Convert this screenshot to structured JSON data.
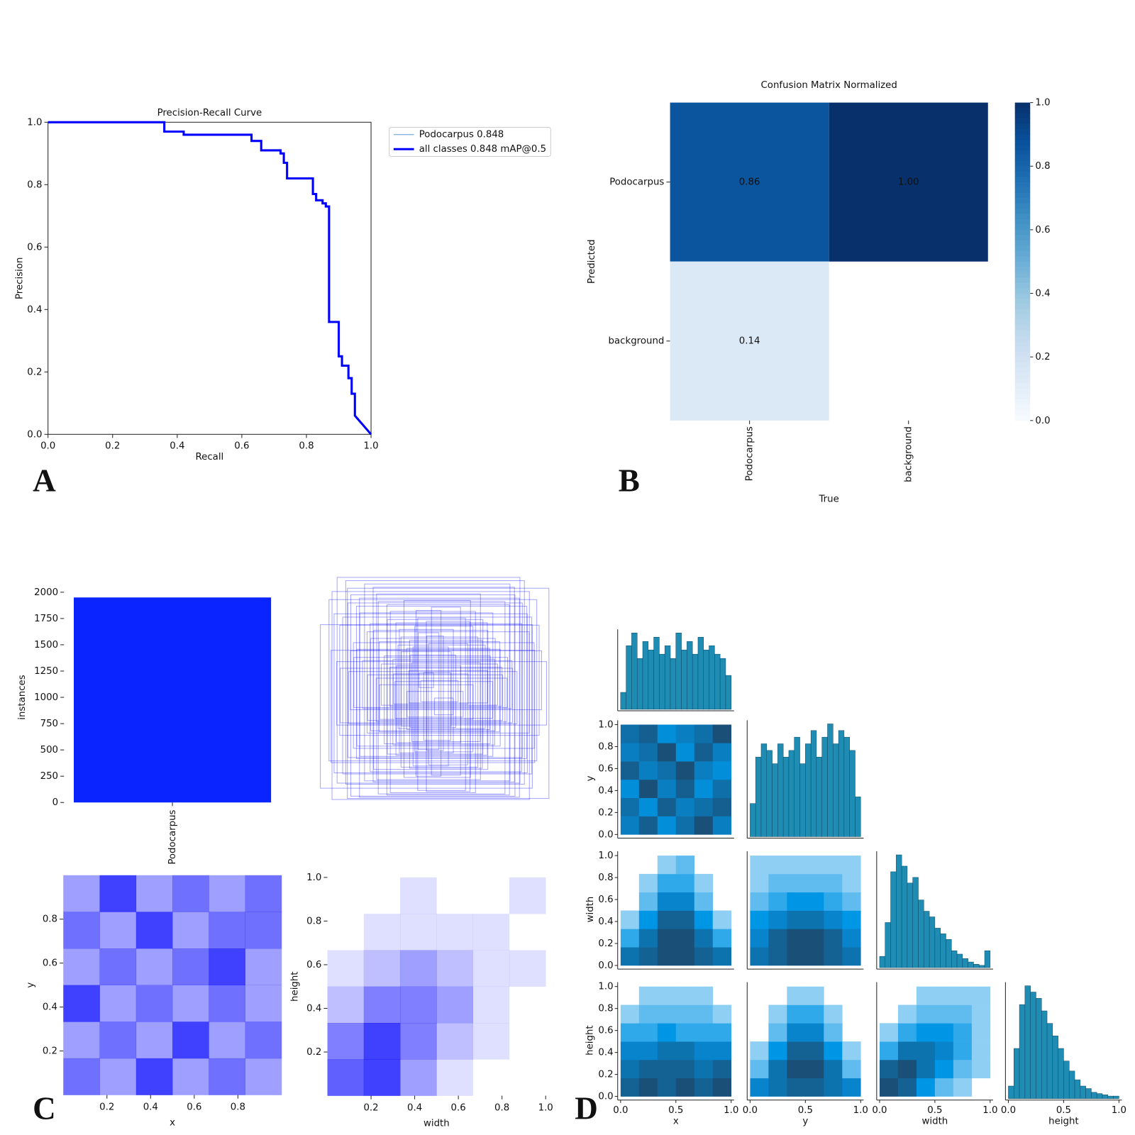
{
  "chart_data": [
    {
      "type": "line",
      "panel": "A",
      "title": "Precision-Recall Curve",
      "xlabel": "Recall",
      "ylabel": "Precision",
      "xlim": [
        0,
        1
      ],
      "ylim": [
        0,
        1
      ],
      "xticks": [
        {
          "value": 0,
          "label": "0.0"
        },
        0.2,
        0.4,
        0.6,
        0.8,
        {
          "value": 1,
          "label": "1.0"
        }
      ],
      "yticks": [
        {
          "value": 0,
          "label": "0.0"
        },
        0.2,
        0.4,
        0.6,
        0.8,
        {
          "value": 1,
          "label": "1.0"
        }
      ],
      "x": [
        0,
        0.36,
        0.36,
        0.42,
        0.42,
        0.63,
        0.63,
        0.66,
        0.66,
        0.72,
        0.72,
        0.73,
        0.73,
        0.74,
        0.74,
        0.82,
        0.82,
        0.83,
        0.83,
        0.85,
        0.85,
        0.86,
        0.86,
        0.87,
        0.87,
        0.9,
        0.9,
        0.91,
        0.91,
        0.93,
        0.93,
        0.94,
        0.94,
        0.95,
        0.95,
        1.0
      ],
      "series": [
        {
          "name": "Podocarpus 0.848",
          "color": "#5a9bd5",
          "values": [
            1,
            1,
            0.97,
            0.97,
            0.96,
            0.96,
            0.94,
            0.94,
            0.91,
            0.91,
            0.9,
            0.9,
            0.87,
            0.87,
            0.82,
            0.82,
            0.77,
            0.77,
            0.75,
            0.75,
            0.74,
            0.74,
            0.73,
            0.73,
            0.36,
            0.36,
            0.25,
            0.25,
            0.22,
            0.22,
            0.18,
            0.18,
            0.13,
            0.13,
            0.06,
            0
          ]
        },
        {
          "name": "all classes 0.848 mAP@0.5",
          "color": "#0000ff",
          "values": [
            1,
            1,
            0.97,
            0.97,
            0.96,
            0.96,
            0.94,
            0.94,
            0.91,
            0.91,
            0.9,
            0.9,
            0.87,
            0.87,
            0.82,
            0.82,
            0.77,
            0.77,
            0.75,
            0.75,
            0.74,
            0.74,
            0.73,
            0.73,
            0.36,
            0.36,
            0.25,
            0.25,
            0.22,
            0.22,
            0.18,
            0.18,
            0.13,
            0.13,
            0.06,
            0
          ]
        }
      ],
      "legend": "upper-right-outside"
    },
    {
      "type": "heatmap",
      "panel": "B",
      "title": "Confusion Matrix Normalized",
      "xlabel": "True",
      "ylabel": "Predicted",
      "x_categories": [
        "Podocarpus",
        "background"
      ],
      "y_categories": [
        "Podocarpus",
        "background"
      ],
      "values": [
        [
          0.86,
          1.0
        ],
        [
          0.14,
          null
        ]
      ],
      "value_labels": [
        [
          "0.86",
          "1.00"
        ],
        [
          "0.14",
          null
        ]
      ],
      "clim": [
        0,
        1
      ],
      "cticks": [
        {
          "value": 0,
          "label": "0.0"
        },
        0.2,
        0.4,
        0.6,
        0.8,
        {
          "value": 1,
          "label": "1.0"
        }
      ],
      "colormap": "Blues"
    },
    {
      "type": "bar",
      "panel": "C",
      "ylabel": "instances",
      "categories": [
        "Podocarpus"
      ],
      "values": [
        1950
      ],
      "color": "#0a24ff",
      "ylim": [
        0,
        2000
      ],
      "yticks": [
        0,
        250,
        500,
        750,
        1000,
        1250,
        1500,
        1750,
        2000
      ]
    },
    {
      "type": "hist2d",
      "xlabel": "x",
      "ylabel": "y",
      "xlim": [
        0,
        1
      ],
      "ylim": [
        0,
        1
      ],
      "color": "#0000ff",
      "xticks": [
        0.2,
        0.4,
        0.6,
        0.8
      ],
      "yticks": [
        0.2,
        0.4,
        0.6,
        0.8
      ],
      "values": [
        [
          3,
          2,
          4,
          2,
          3,
          2
        ],
        [
          2,
          3,
          2,
          4,
          2,
          3
        ],
        [
          4,
          2,
          3,
          2,
          3,
          2
        ],
        [
          2,
          3,
          2,
          3,
          4,
          2
        ],
        [
          3,
          2,
          4,
          2,
          3,
          3
        ],
        [
          2,
          4,
          2,
          3,
          2,
          3
        ]
      ]
    },
    {
      "type": "hist2d",
      "xlabel": "width",
      "ylabel": "height",
      "xlim": [
        0,
        1
      ],
      "ylim": [
        0,
        1
      ],
      "color": "#0000ff",
      "xticks": [
        0.2,
        0.4,
        0.6,
        0.8,
        {
          "value": 1,
          "label": "1.0"
        }
      ],
      "yticks": [
        0.2,
        0.4,
        0.6,
        0.8,
        {
          "value": 1,
          "label": "1.0"
        }
      ],
      "values": [
        [
          5,
          6,
          3,
          1,
          0,
          0
        ],
        [
          4,
          6,
          4,
          2,
          1,
          0
        ],
        [
          2,
          4,
          4,
          3,
          1,
          0
        ],
        [
          1,
          2,
          3,
          2,
          1,
          1
        ],
        [
          0,
          1,
          1,
          1,
          1,
          0
        ],
        [
          0,
          0,
          1,
          0,
          0,
          1
        ]
      ]
    },
    {
      "type": "pairplot",
      "panel": "D",
      "variables": [
        "x",
        "y",
        "width",
        "height"
      ],
      "lim": [
        0,
        1
      ],
      "yticks": [
        {
          "value": 0,
          "label": "0.0"
        },
        0.2,
        0.4,
        0.6,
        0.8,
        {
          "value": 1,
          "label": "1.0"
        }
      ],
      "xticks": [
        {
          "value": 0,
          "label": "0.0"
        },
        0.5,
        {
          "value": 1,
          "label": "1.0"
        }
      ],
      "hist_color": "#1f8cb4",
      "histograms": [
        [
          20,
          75,
          90,
          60,
          80,
          70,
          85,
          65,
          75,
          60,
          90,
          70,
          80,
          65,
          85,
          70,
          75,
          65,
          60,
          40
        ],
        [
          25,
          60,
          70,
          65,
          55,
          70,
          60,
          65,
          75,
          55,
          70,
          80,
          60,
          75,
          85,
          70,
          80,
          75,
          65,
          30
        ],
        [
          10,
          40,
          85,
          100,
          90,
          75,
          80,
          60,
          50,
          45,
          35,
          30,
          25,
          15,
          12,
          8,
          5,
          3,
          2,
          15
        ],
        [
          10,
          40,
          75,
          90,
          85,
          80,
          70,
          60,
          50,
          40,
          30,
          22,
          15,
          10,
          8,
          5,
          4,
          3,
          2,
          2
        ]
      ],
      "grids": [
        [
          [
            [
              6,
              8,
              5,
              7,
              9,
              6
            ],
            [
              7,
              5,
              8,
              6,
              7,
              8
            ],
            [
              5,
              9,
              6,
              8,
              5,
              7
            ],
            [
              8,
              6,
              7,
              9,
              6,
              5
            ],
            [
              6,
              7,
              9,
              5,
              8,
              6
            ],
            [
              7,
              8,
              5,
              6,
              7,
              9
            ]
          ]
        ],
        [
          [
            [
              6,
              7,
              8,
              8,
              7,
              6
            ],
            [
              3,
              6,
              8,
              8,
              6,
              3
            ],
            [
              1,
              4,
              7,
              7,
              4,
              1
            ],
            [
              0,
              2,
              5,
              5,
              2,
              0
            ],
            [
              0,
              1,
              3,
              3,
              1,
              0
            ],
            [
              0,
              0,
              1,
              2,
              0,
              0
            ]
          ],
          [
            [
              6,
              7,
              8,
              8,
              7,
              6
            ],
            [
              5,
              7,
              8,
              8,
              7,
              5
            ],
            [
              4,
              5,
              6,
              6,
              5,
              4
            ],
            [
              2,
              3,
              4,
              4,
              3,
              2
            ],
            [
              1,
              2,
              2,
              2,
              2,
              1
            ],
            [
              1,
              1,
              1,
              1,
              1,
              1
            ]
          ]
        ],
        [
          [
            [
              7,
              8,
              7,
              8,
              7,
              8
            ],
            [
              6,
              7,
              7,
              7,
              6,
              7
            ],
            [
              5,
              5,
              6,
              6,
              5,
              5
            ],
            [
              3,
              3,
              4,
              3,
              3,
              3
            ],
            [
              1,
              2,
              2,
              2,
              2,
              1
            ],
            [
              0,
              1,
              1,
              1,
              1,
              0
            ]
          ],
          [
            [
              5,
              6,
              7,
              7,
              6,
              5
            ],
            [
              2,
              6,
              8,
              8,
              6,
              2
            ],
            [
              1,
              4,
              7,
              7,
              4,
              1
            ],
            [
              0,
              2,
              5,
              5,
              2,
              0
            ],
            [
              0,
              1,
              3,
              3,
              1,
              0
            ],
            [
              0,
              0,
              1,
              1,
              0,
              0
            ]
          ],
          [
            [
              8,
              7,
              4,
              2,
              1,
              0
            ],
            [
              7,
              8,
              6,
              4,
              2,
              1
            ],
            [
              3,
              6,
              6,
              5,
              3,
              1
            ],
            [
              1,
              3,
              4,
              4,
              3,
              1
            ],
            [
              0,
              1,
              2,
              2,
              2,
              1
            ],
            [
              0,
              0,
              1,
              1,
              1,
              1
            ]
          ]
        ]
      ]
    }
  ]
}
